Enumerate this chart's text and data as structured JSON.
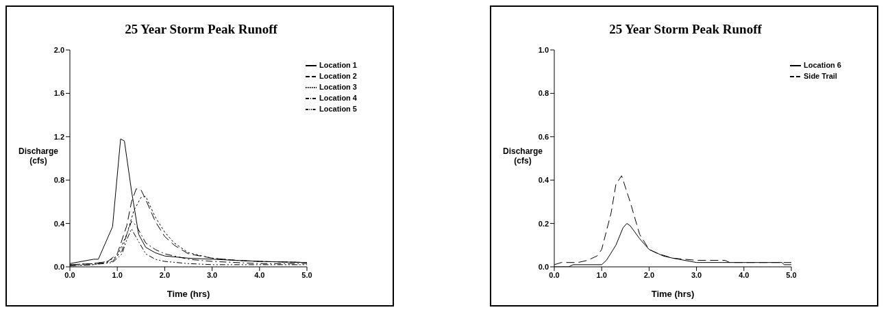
{
  "chart_data": [
    {
      "type": "line",
      "title": "25 Year Storm Peak Runoff",
      "xlabel": "Time (hrs)",
      "ylabel": "Discharge\n(cfs)",
      "xlim": [
        0,
        5
      ],
      "xticks": [
        {
          "value": 0,
          "label": "0.0"
        },
        {
          "value": 1,
          "label": "1.0"
        },
        {
          "value": 2,
          "label": "2.0"
        },
        {
          "value": 3,
          "label": "3.0"
        },
        {
          "value": 4,
          "label": "4.0"
        },
        {
          "value": 5,
          "label": "5.0"
        }
      ],
      "ylim": [
        0,
        2
      ],
      "yticks": [
        {
          "value": 0,
          "label": "0.0"
        },
        {
          "value": 0.4,
          "label": "0.4"
        },
        {
          "value": 0.8,
          "label": "0.8"
        },
        {
          "value": 1.2,
          "label": "1.2"
        },
        {
          "value": 1.6,
          "label": "1.6"
        },
        {
          "value": 2,
          "label": "2.0"
        }
      ],
      "grid": false,
      "legend": "top right",
      "marker": "none",
      "series": [
        {
          "name": "Location 1",
          "color": "#000000",
          "line_style": "solid",
          "x": [
            0,
            0.5,
            0.6,
            0.9,
            1.07,
            1.15,
            1.3,
            1.45,
            1.6,
            1.8,
            2,
            2.5,
            3,
            3.5,
            4,
            5
          ],
          "values": [
            0.03,
            0.07,
            0.07,
            0.37,
            1.18,
            1.16,
            0.7,
            0.3,
            0.18,
            0.13,
            0.1,
            0.08,
            0.07,
            0.06,
            0.05,
            0.04
          ]
        },
        {
          "name": "Location 2",
          "color": "#000000",
          "line_style": "dashed",
          "x": [
            0,
            0.5,
            0.8,
            1,
            1.2,
            1.3,
            1.4,
            1.5,
            1.6,
            1.8,
            2,
            2.2,
            2.5,
            3,
            3.5,
            4,
            5
          ],
          "values": [
            0.02,
            0.03,
            0.05,
            0.12,
            0.38,
            0.6,
            0.72,
            0.71,
            0.62,
            0.42,
            0.28,
            0.2,
            0.12,
            0.08,
            0.06,
            0.05,
            0.04
          ]
        },
        {
          "name": "Location 3",
          "color": "#000000",
          "line_style": "dotted",
          "x": [
            0,
            0.5,
            0.8,
            1,
            1.2,
            1.35,
            1.5,
            1.6,
            1.8,
            2,
            2.2,
            2.5,
            3,
            3.5,
            4,
            5
          ],
          "values": [
            0.02,
            0.03,
            0.05,
            0.1,
            0.3,
            0.52,
            0.64,
            0.65,
            0.46,
            0.32,
            0.22,
            0.13,
            0.08,
            0.06,
            0.05,
            0.04
          ]
        },
        {
          "name": "Location 4",
          "color": "#000000",
          "line_style": "dashdot",
          "x": [
            0,
            0.5,
            0.9,
            1.1,
            1.2,
            1.3,
            1.4,
            1.6,
            1.8,
            2,
            2.5,
            3,
            4,
            5
          ],
          "values": [
            0.01,
            0.02,
            0.05,
            0.15,
            0.3,
            0.42,
            0.38,
            0.22,
            0.16,
            0.12,
            0.07,
            0.05,
            0.03,
            0.03
          ]
        },
        {
          "name": "Location 5",
          "color": "#000000",
          "line_style": "dashdotdot",
          "x": [
            0,
            0.5,
            0.9,
            1.1,
            1.2,
            1.3,
            1.4,
            1.6,
            1.8,
            2,
            2.5,
            3,
            4,
            5
          ],
          "values": [
            0.01,
            0.02,
            0.04,
            0.12,
            0.25,
            0.35,
            0.27,
            0.12,
            0.07,
            0.05,
            0.03,
            0.02,
            0.02,
            0.02
          ]
        }
      ]
    },
    {
      "type": "line",
      "title": "25 Year Storm Peak Runoff",
      "xlabel": "Time (hrs)",
      "ylabel": "Discharge\n(cfs)",
      "xlim": [
        0,
        5
      ],
      "xticks": [
        {
          "value": 0,
          "label": "0.0"
        },
        {
          "value": 1,
          "label": "1.0"
        },
        {
          "value": 2,
          "label": "2.0"
        },
        {
          "value": 3,
          "label": "3.0"
        },
        {
          "value": 4,
          "label": "4.0"
        },
        {
          "value": 5,
          "label": "5.0"
        }
      ],
      "ylim": [
        0,
        1
      ],
      "yticks": [
        {
          "value": 0,
          "label": "0.0"
        },
        {
          "value": 0.2,
          "label": "0.2"
        },
        {
          "value": 0.4,
          "label": "0.4"
        },
        {
          "value": 0.6,
          "label": "0.6"
        },
        {
          "value": 0.8,
          "label": "0.8"
        },
        {
          "value": 1,
          "label": "1.0"
        }
      ],
      "grid": false,
      "legend": "top right",
      "marker": "none",
      "series": [
        {
          "name": "Location 6",
          "color": "#000000",
          "line_style": "solid",
          "x": [
            0,
            0.3,
            0.4,
            1,
            1.1,
            1.3,
            1.45,
            1.53,
            1.6,
            1.8,
            2,
            2.3,
            2.5,
            3,
            4.8,
            4.85,
            5
          ],
          "values": [
            0,
            0,
            0.01,
            0.01,
            0.03,
            0.1,
            0.18,
            0.2,
            0.19,
            0.13,
            0.08,
            0.05,
            0.04,
            0.02,
            0.02,
            0.01,
            0.01
          ]
        },
        {
          "name": "Side Trail",
          "color": "#000000",
          "line_style": "dashed",
          "x": [
            0,
            0.15,
            0.5,
            0.7,
            0.9,
            1,
            1.2,
            1.3,
            1.42,
            1.6,
            1.8,
            2,
            2.2,
            2.5,
            3,
            3.6,
            3.7,
            5
          ],
          "values": [
            0.01,
            0.02,
            0.02,
            0.03,
            0.05,
            0.08,
            0.25,
            0.38,
            0.42,
            0.3,
            0.15,
            0.08,
            0.06,
            0.04,
            0.03,
            0.03,
            0.02,
            0.02
          ]
        }
      ]
    }
  ]
}
